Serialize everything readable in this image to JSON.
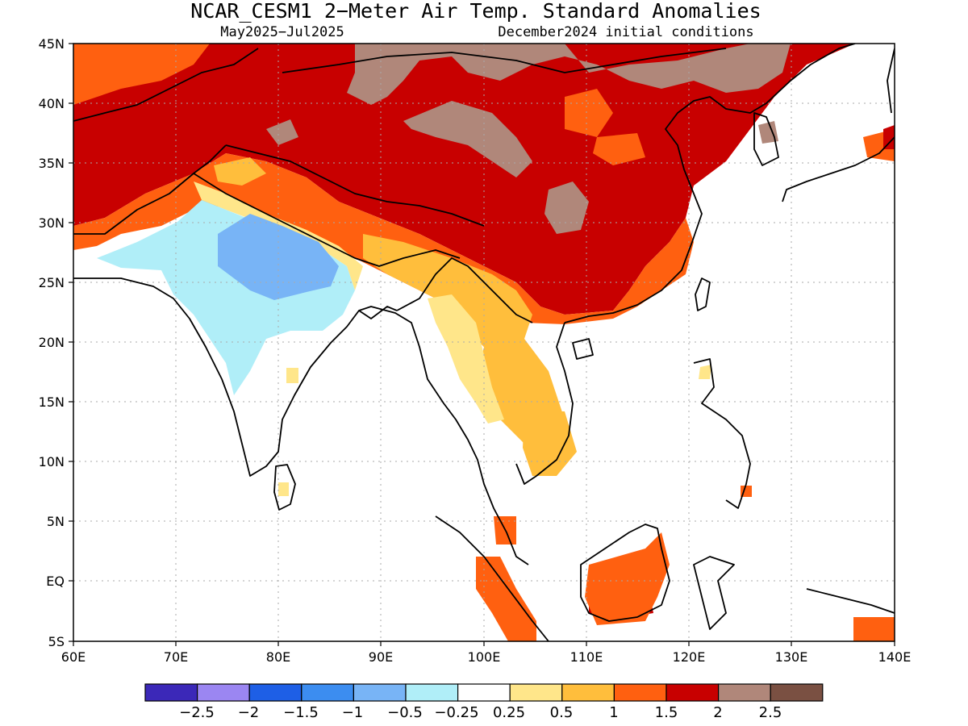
{
  "header": {
    "title": "NCAR_CESM1 2−Meter Air Temp. Standard Anomalies",
    "period": "May2025−Jul2025",
    "init": "December2024 initial conditions"
  },
  "axes": {
    "lon_labels": [
      "60E",
      "70E",
      "80E",
      "90E",
      "100E",
      "110E",
      "120E",
      "130E",
      "140E"
    ],
    "lat_labels": [
      "45N",
      "40N",
      "35N",
      "30N",
      "25N",
      "20N",
      "15N",
      "10N",
      "5N",
      "EQ",
      "5S"
    ]
  },
  "legend": {
    "tick_labels": [
      "−2.5",
      "−2",
      "−1.5",
      "−1",
      "−0.5",
      "−0.25",
      "0.25",
      "0.5",
      "1",
      "1.5",
      "2",
      "2.5"
    ],
    "colors": [
      "#3b28b8",
      "#9b86f2",
      "#1e5fe6",
      "#3c8df0",
      "#78b4f6",
      "#b0eef8",
      "#ffffff",
      "#ffe68a",
      "#ffbe3c",
      "#ff6010",
      "#c80000",
      "#b0877a",
      "#7a5042"
    ]
  },
  "palette": {
    "land_line": "#000000",
    "grid": "#aaaaaa"
  }
}
